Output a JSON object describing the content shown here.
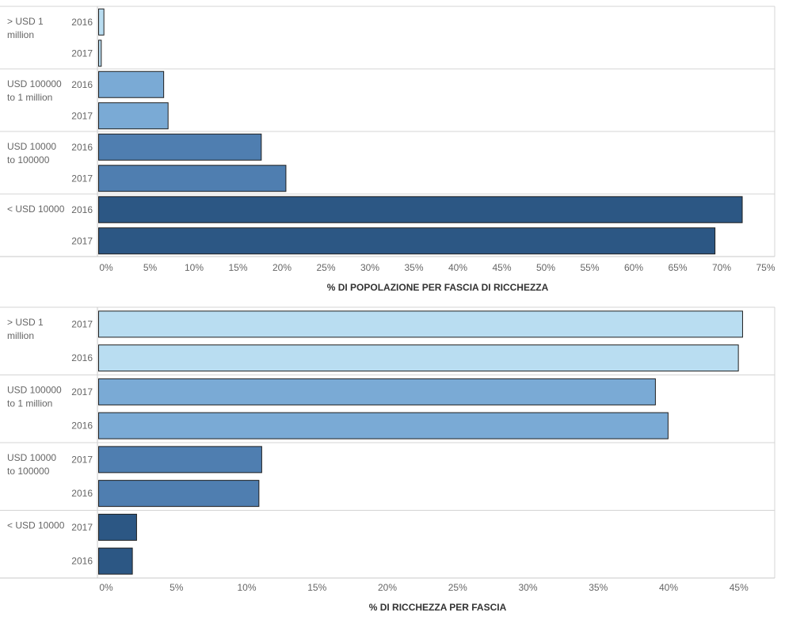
{
  "chart_data": [
    {
      "type": "bar",
      "orientation": "horizontal",
      "xlabel": "% DI POPOLAZIONE PER FASCIA DI RICCHEZZA",
      "xlim": [
        0,
        77
      ],
      "ticks": [
        0,
        5,
        10,
        15,
        20,
        25,
        30,
        35,
        40,
        45,
        50,
        55,
        60,
        65,
        70,
        75
      ],
      "tick_suffix": "%",
      "groups": [
        {
          "label": [
            "> USD 1",
            "million"
          ],
          "color": "#b9ddf1",
          "bars": [
            {
              "year": "2016",
              "value": 0.6
            },
            {
              "year": "2017",
              "value": 0.3
            }
          ]
        },
        {
          "label": [
            "USD 100000",
            "to 1 million"
          ],
          "color": "#7aaad5",
          "bars": [
            {
              "year": "2016",
              "value": 7.4
            },
            {
              "year": "2017",
              "value": 7.9
            }
          ]
        },
        {
          "label": [
            "USD 10000",
            "to 100000"
          ],
          "color": "#4f7eb0",
          "bars": [
            {
              "year": "2016",
              "value": 18.5
            },
            {
              "year": "2017",
              "value": 21.3
            }
          ]
        },
        {
          "label": [
            "< USD 10000"
          ],
          "color": "#2c5784",
          "bars": [
            {
              "year": "2016",
              "value": 73.2
            },
            {
              "year": "2017",
              "value": 70.1
            }
          ]
        }
      ]
    },
    {
      "type": "bar",
      "orientation": "horizontal",
      "xlabel": "% DI RICCHEZZA PER FASCIA",
      "xlim": [
        0,
        47
      ],
      "ticks": [
        0,
        5,
        10,
        15,
        20,
        25,
        30,
        35,
        40,
        45
      ],
      "tick_suffix": "%",
      "groups": [
        {
          "label": [
            "> USD 1",
            "million"
          ],
          "color": "#b9ddf1",
          "bars": [
            {
              "year": "2017",
              "value": 45.8
            },
            {
              "year": "2016",
              "value": 45.5
            }
          ]
        },
        {
          "label": [
            "USD 100000",
            "to 1 million"
          ],
          "color": "#7aaad5",
          "bars": [
            {
              "year": "2017",
              "value": 39.6
            },
            {
              "year": "2016",
              "value": 40.5
            }
          ]
        },
        {
          "label": [
            "USD 10000",
            "to 100000"
          ],
          "color": "#4f7eb0",
          "bars": [
            {
              "year": "2017",
              "value": 11.6
            },
            {
              "year": "2016",
              "value": 11.4
            }
          ]
        },
        {
          "label": [
            "< USD 10000"
          ],
          "color": "#2c5784",
          "bars": [
            {
              "year": "2017",
              "value": 2.7
            },
            {
              "year": "2016",
              "value": 2.4
            }
          ]
        }
      ]
    }
  ]
}
